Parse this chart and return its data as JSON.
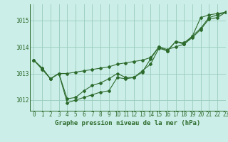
{
  "title": "Graphe pression niveau de la mer (hPa)",
  "background_color": "#cceee8",
  "grid_color": "#99ccbb",
  "line_color": "#2d6b2d",
  "xlim": [
    -0.5,
    23
  ],
  "ylim": [
    1011.6,
    1015.6
  ],
  "yticks": [
    1012,
    1013,
    1014,
    1015
  ],
  "xticks": [
    0,
    1,
    2,
    3,
    4,
    5,
    6,
    7,
    8,
    9,
    10,
    11,
    12,
    13,
    14,
    15,
    16,
    17,
    18,
    19,
    20,
    21,
    22,
    23
  ],
  "series": [
    [
      1013.5,
      1013.2,
      1012.8,
      1013.0,
      1011.9,
      1012.0,
      1012.1,
      1012.2,
      1012.3,
      1012.35,
      1012.85,
      1012.8,
      1012.85,
      1013.05,
      1013.55,
      1014.0,
      1013.85,
      1014.2,
      1014.15,
      1014.4,
      1015.1,
      1015.2,
      1015.25,
      1015.3
    ],
    [
      1013.5,
      1013.2,
      1012.8,
      1013.0,
      1013.0,
      1013.05,
      1013.1,
      1013.15,
      1013.2,
      1013.25,
      1013.35,
      1013.4,
      1013.45,
      1013.5,
      1013.6,
      1014.0,
      1013.9,
      1014.0,
      1014.1,
      1014.35,
      1014.65,
      1015.05,
      1015.1,
      1015.3
    ],
    [
      1013.5,
      1013.15,
      1012.8,
      1013.0,
      1012.05,
      1012.1,
      1012.35,
      1012.55,
      1012.65,
      1012.8,
      1013.0,
      1012.85,
      1012.85,
      1013.1,
      1013.35,
      1013.95,
      1013.85,
      1014.2,
      1014.1,
      1014.4,
      1014.7,
      1015.1,
      1015.2,
      1015.3
    ]
  ],
  "marker": "D",
  "markersize": 2.0,
  "linewidth": 0.8,
  "title_fontsize": 6.5,
  "tick_fontsize": 5.5
}
